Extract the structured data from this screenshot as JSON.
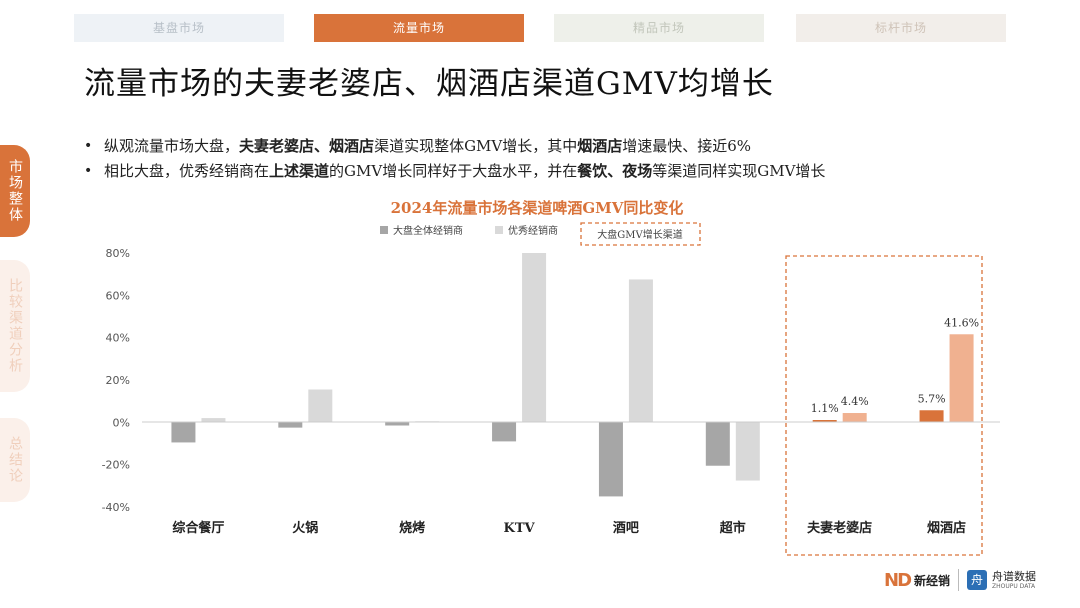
{
  "nav": {
    "tabs": [
      "基盘市场",
      "流量市场",
      "精品市场",
      "标杆市场"
    ]
  },
  "side": {
    "tabs": [
      "市场整体",
      "比较渠道分析",
      "总结论"
    ]
  },
  "title": "流量市场的夫妻老婆店、烟酒店渠道GMV均增长",
  "bullets": {
    "b1": {
      "p1": "纵观流量市场大盘，",
      "p2": "夫妻老婆店",
      "p3": "、",
      "p4": "烟酒店",
      "p5": "渠道实现整体GMV增长，其中",
      "p6": "烟酒店",
      "p7": "增速最快、接近6%"
    },
    "b2": {
      "p1": "相比大盘，优秀经销商在",
      "p2": "上述渠道",
      "p3": "的GMV增长同样好于大盘水平，并在",
      "p4": "餐饮、夜场",
      "p5": "等渠道同样实现GMV增长"
    }
  },
  "chart_data": {
    "type": "bar",
    "title": "2024年流量市场各渠道啤酒GMV同比变化",
    "categories": [
      "综合餐厅",
      "火锅",
      "烧烤",
      "KTV",
      "酒吧",
      "超市",
      "夫妻老婆店",
      "烟酒店"
    ],
    "series": [
      {
        "name": "大盘全体经销商",
        "values": [
          -9.5,
          -2.5,
          -1.5,
          -9,
          -35,
          -20.5,
          1.1,
          5.7
        ]
      },
      {
        "name": "优秀经销商",
        "values": [
          2,
          15.5,
          0.5,
          80,
          67.5,
          -27.5,
          4.4,
          41.6
        ]
      }
    ],
    "data_labels": {
      "夫妻老婆店": [
        "1.1%",
        "4.4%"
      ],
      "烟酒店": [
        "5.7%",
        "41.6%"
      ]
    },
    "highlight_legend": "大盘GMV增长渠道",
    "highlight_categories": [
      "夫妻老婆店",
      "烟酒店"
    ],
    "yticks": [
      "80%",
      "60%",
      "40%",
      "20%",
      "0%",
      "-20%",
      "-40%"
    ],
    "ylim": [
      -40,
      80
    ],
    "grid": false,
    "legend_position": "top",
    "colors": {
      "series_normal": [
        "#a6a6a6",
        "#d9d9d9"
      ],
      "series_highlight": [
        "#d9733a",
        "#f0b190"
      ],
      "highlight_box": "#d9733a",
      "title": "#d9733a"
    }
  },
  "footer": {
    "logo1": "新经销",
    "logo1_mark": "ND",
    "logo2": "舟谱数据",
    "logo2_sub": "ZHOUPU DATA",
    "logo2_icon": "舟"
  }
}
